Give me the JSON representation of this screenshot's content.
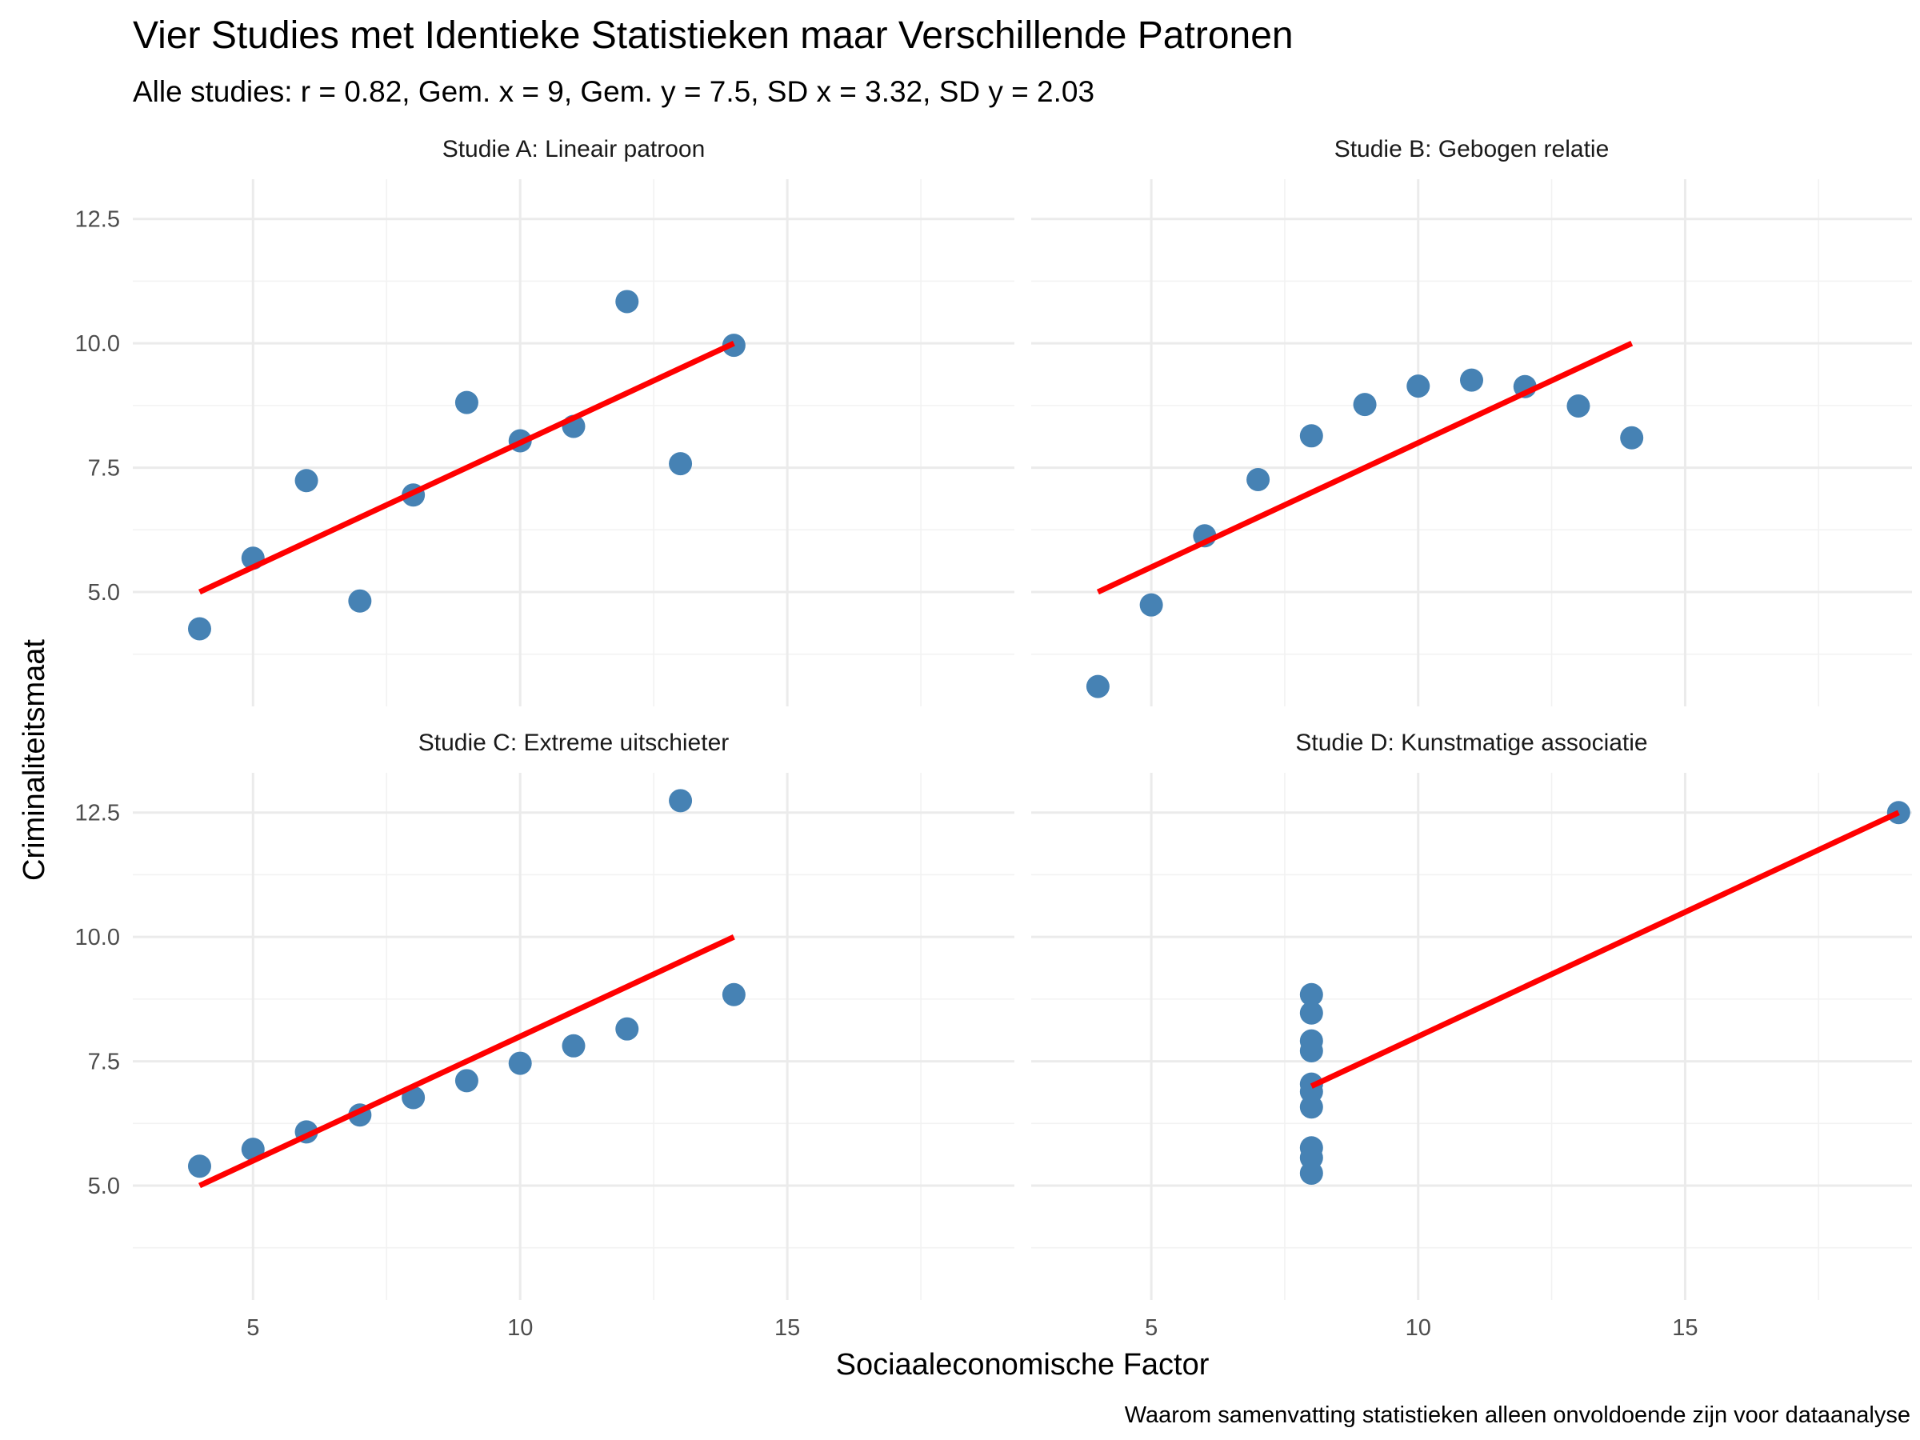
{
  "chart_data": {
    "type": "scatter",
    "title": "Vier Studies met Identieke Statistieken maar Verschillende Patronen",
    "subtitle": "Alle studies: r = 0.82, Gem. x = 9, Gem. y = 7.5, SD x = 3.32, SD y = 2.03",
    "xlabel": "Sociaaleconomische Factor",
    "ylabel": "Criminaliteitsmaat",
    "caption": "Waarom samenvatting statistieken alleen onvoldoende zijn voor dataanalyse",
    "xlim": [
      2.75,
      19.25
    ],
    "ylim": [
      2.7,
      13.3
    ],
    "x_ticks": [
      5,
      10,
      15
    ],
    "x_tick_labels": [
      "5",
      "10",
      "15"
    ],
    "y_ticks": [
      5.0,
      7.5,
      10.0,
      12.5
    ],
    "y_tick_labels": [
      "5.0",
      "7.5",
      "10.0",
      "12.5"
    ],
    "grid": true,
    "point_color": "#4682b4",
    "line_color": "#ff0000",
    "panels": [
      {
        "name": "Studie A: Lineair patroon",
        "x": [
          10,
          8,
          13,
          9,
          11,
          14,
          6,
          4,
          12,
          7,
          5
        ],
        "y": [
          8.04,
          6.95,
          7.58,
          8.81,
          8.33,
          9.96,
          7.24,
          4.26,
          10.84,
          4.82,
          5.68
        ],
        "fit_line": {
          "x": [
            4,
            14
          ],
          "y": [
            5.0,
            10.0
          ]
        }
      },
      {
        "name": "Studie B: Gebogen relatie",
        "x": [
          10,
          8,
          13,
          9,
          11,
          14,
          6,
          4,
          12,
          7,
          5
        ],
        "y": [
          9.14,
          8.14,
          8.74,
          8.77,
          9.26,
          8.1,
          6.13,
          3.1,
          9.13,
          7.26,
          4.74
        ],
        "fit_line": {
          "x": [
            4,
            14
          ],
          "y": [
            5.0,
            10.0
          ]
        }
      },
      {
        "name": "Studie C: Extreme uitschieter",
        "x": [
          10,
          8,
          13,
          9,
          11,
          14,
          6,
          4,
          12,
          7,
          5
        ],
        "y": [
          7.46,
          6.77,
          12.74,
          7.11,
          7.81,
          8.84,
          6.08,
          5.39,
          8.15,
          6.42,
          5.73
        ],
        "fit_line": {
          "x": [
            4,
            14
          ],
          "y": [
            5.0,
            10.0
          ]
        }
      },
      {
        "name": "Studie D: Kunstmatige associatie",
        "x": [
          8,
          8,
          8,
          8,
          8,
          8,
          8,
          19,
          8,
          8,
          8
        ],
        "y": [
          6.58,
          5.76,
          7.71,
          8.84,
          8.47,
          7.04,
          5.25,
          12.5,
          5.56,
          7.91,
          6.89
        ],
        "fit_line": {
          "x": [
            8,
            19
          ],
          "y": [
            7.0,
            12.5
          ]
        }
      }
    ]
  }
}
